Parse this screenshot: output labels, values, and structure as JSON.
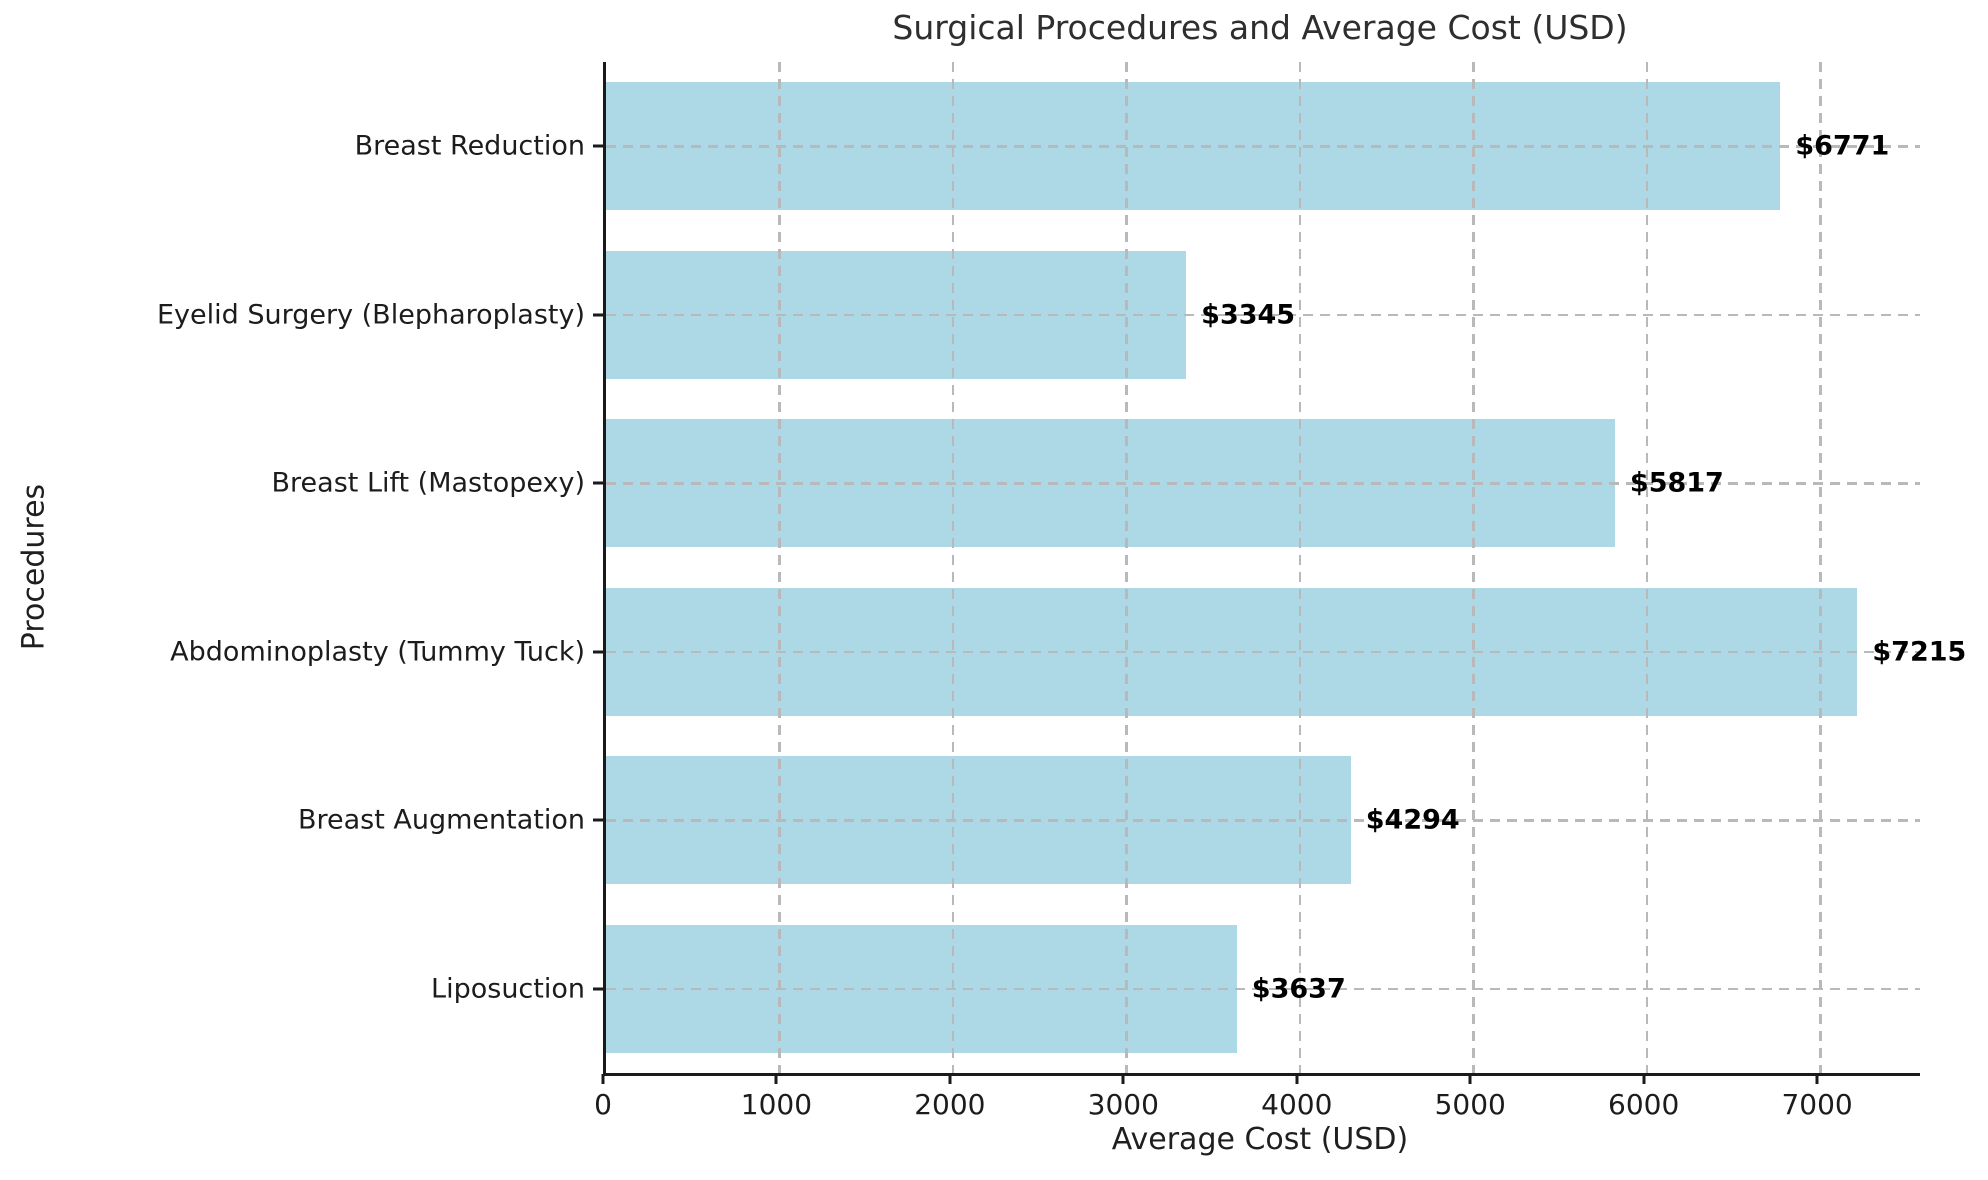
{
  "chart_data": {
    "type": "bar",
    "orientation": "horizontal",
    "title": "Surgical Procedures and Average Cost (USD)",
    "xlabel": "Average Cost (USD)",
    "ylabel": "Procedures",
    "categories": [
      "Breast Reduction",
      "Eyelid Surgery (Blepharoplasty)",
      "Breast Lift (Mastopexy)",
      "Abdominoplasty (Tummy Tuck)",
      "Breast Augmentation",
      "Liposuction"
    ],
    "values": [
      6771,
      3345,
      5817,
      7215,
      4294,
      3637
    ],
    "value_labels": [
      "$6771",
      "$3345",
      "$5817",
      "$7215",
      "$4294",
      "$3637"
    ],
    "xticks": [
      0,
      1000,
      2000,
      3000,
      4000,
      5000,
      6000,
      7000
    ],
    "xlim": [
      0,
      7576
    ],
    "grid": "dashed",
    "grid_on": true,
    "legend": "none",
    "bar_color": "#ADD8E6",
    "grid_color": "#b9b9b9",
    "spine_color": "#1a1a1a",
    "value_label_color": "#000000",
    "bar_height_fraction": 0.76
  }
}
